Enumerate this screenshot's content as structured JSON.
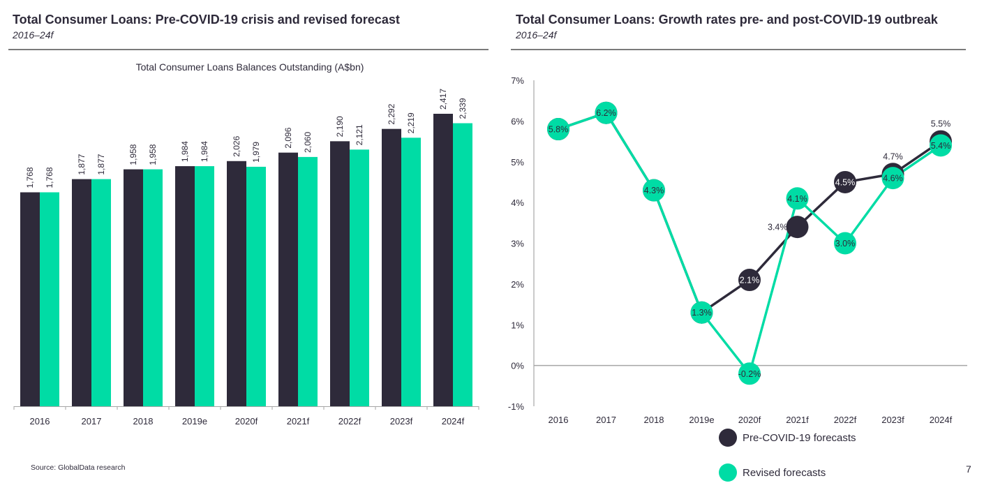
{
  "colors": {
    "pre_covid": "#2e2a3a",
    "revised": "#00dca5",
    "axis": "#a6a6a6",
    "rule": "#7a7a7a",
    "text": "#2e2a3a"
  },
  "left_panel": {
    "title": "Total Consumer Loans: Pre-COVID-19 crisis and revised forecast",
    "subtitle": "2016–24f"
  },
  "right_panel": {
    "title": "Total Consumer Loans: Growth rates pre- and post-COVID-19 outbreak",
    "subtitle": "2016–24f"
  },
  "footer": {
    "source": "Source: GlobalData research",
    "page_number": "7"
  },
  "legend": {
    "items": [
      {
        "label": "Pre-COVID-19 forecasts",
        "series": "pre_covid"
      },
      {
        "label": "Revised forecasts",
        "series": "revised"
      }
    ]
  },
  "chart_data": [
    {
      "type": "bar",
      "title": "Total Consumer Loans Balances Outstanding (A$bn)",
      "xlabel": "",
      "ylabel": "",
      "ylim": [
        0,
        2417
      ],
      "grid": false,
      "categories": [
        "2016",
        "2017",
        "2018",
        "2019e",
        "2020f",
        "2021f",
        "2022f",
        "2023f",
        "2024f"
      ],
      "series": [
        {
          "name": "Pre-COVID-19 forecasts",
          "color_key": "pre_covid",
          "values": [
            1768,
            1877,
            1958,
            1984,
            2026,
            2096,
            2190,
            2292,
            2417
          ],
          "labels": [
            "1,768",
            "1,877",
            "1,958",
            "1,984",
            "2,026",
            "2,096",
            "2,190",
            "2,292",
            "2,417"
          ]
        },
        {
          "name": "Revised forecasts",
          "color_key": "revised",
          "values": [
            1768,
            1877,
            1958,
            1984,
            1979,
            2060,
            2121,
            2219,
            2339
          ],
          "labels": [
            "1,768",
            "1,877",
            "1,958",
            "1,984",
            "1,979",
            "2,060",
            "2,121",
            "2,219",
            "2,339"
          ]
        }
      ]
    },
    {
      "type": "line",
      "title": "",
      "xlabel": "",
      "ylabel": "",
      "ylim": [
        -1,
        7
      ],
      "yticks": [
        -1,
        0,
        1,
        2,
        3,
        4,
        5,
        6,
        7
      ],
      "ytick_labels": [
        "-1%",
        "0%",
        "1%",
        "2%",
        "3%",
        "4%",
        "5%",
        "6%",
        "7%"
      ],
      "grid": false,
      "legend": "bottom",
      "categories": [
        "2016",
        "2017",
        "2018",
        "2019e",
        "2020f",
        "2021f",
        "2022f",
        "2023f",
        "2024f"
      ],
      "series": [
        {
          "name": "Pre-COVID-19 forecasts",
          "color_key": "pre_covid",
          "values": [
            5.8,
            6.2,
            4.3,
            1.3,
            2.1,
            3.4,
            4.5,
            4.7,
            5.5
          ],
          "labels": [
            "5.8%",
            "6.2%",
            "4.3%",
            "1.3%",
            "2.1%",
            "3.4%",
            "4.5%",
            "4.7%",
            "5.5%"
          ]
        },
        {
          "name": "Revised forecasts",
          "color_key": "revised",
          "values": [
            5.8,
            6.2,
            4.3,
            1.3,
            -0.2,
            4.1,
            3.0,
            4.6,
            5.4
          ],
          "labels": [
            "5.8%",
            "6.2%",
            "4.3%",
            "1.3%",
            "-0.2%",
            "4.1%",
            "3.0%",
            "4.6%",
            "5.4%"
          ]
        }
      ]
    }
  ]
}
